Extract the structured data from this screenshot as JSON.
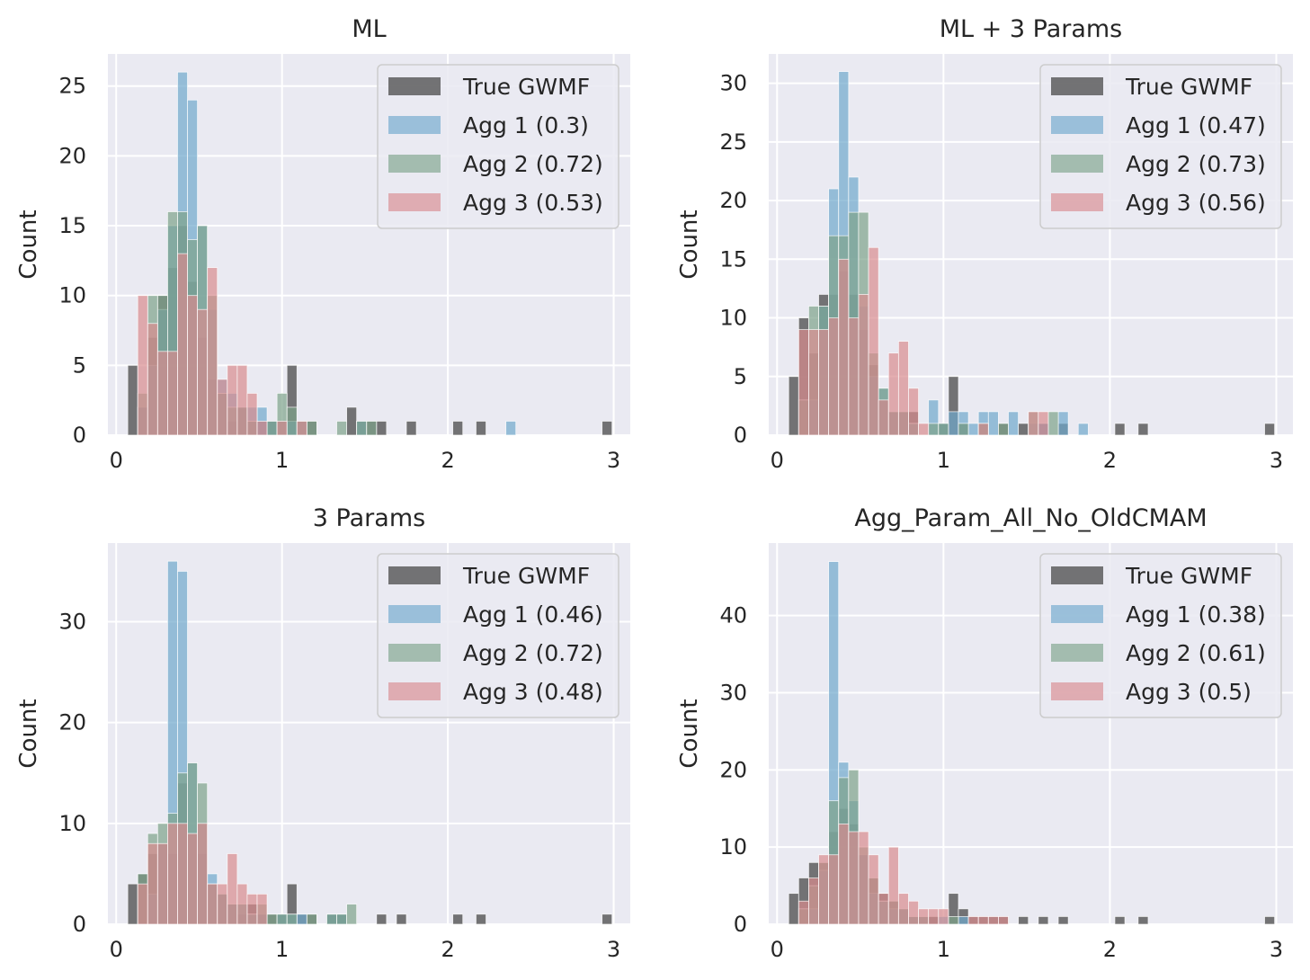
{
  "colors": {
    "axes_bg": "#EAEAF2",
    "grid": "#FFFFFF",
    "text": "#262626",
    "true_gwmf": "#4a4a4a",
    "agg1": "#6fa8cc",
    "agg2": "#7da38a",
    "agg3": "#d98b8f"
  },
  "chart_data": [
    {
      "type": "bar",
      "title": "ML",
      "xlabel": "",
      "ylabel": "Count",
      "xlim": [
        -0.05,
        3.1
      ],
      "ylim": [
        0,
        27.3
      ],
      "xticks": [
        0,
        1,
        2,
        3
      ],
      "yticks": [
        0,
        5,
        10,
        15,
        20,
        25
      ],
      "grid": true,
      "legend_position": "top-right",
      "bin_width": 0.06,
      "series": [
        {
          "name": "True GWMF",
          "x": [
            0.1,
            0.16,
            0.22,
            0.28,
            0.34,
            0.4,
            0.46,
            0.52,
            0.58,
            0.64,
            0.7,
            0.76,
            0.82,
            0.88,
            0.94,
            1.0,
            1.06,
            1.12,
            1.18,
            1.42,
            1.48,
            1.54,
            1.6,
            1.78,
            2.06,
            2.2,
            2.96
          ],
          "values": [
            5,
            2,
            7,
            10,
            12,
            15,
            11,
            7,
            4,
            3,
            1,
            2,
            1,
            1,
            1,
            1,
            5,
            1,
            1,
            2,
            1,
            1,
            1,
            1,
            1,
            1,
            1
          ]
        },
        {
          "name": "Agg 1 (0.3)",
          "x": [
            0.16,
            0.22,
            0.28,
            0.34,
            0.4,
            0.46,
            0.52,
            0.58,
            0.64,
            0.7,
            0.76,
            0.82,
            0.88,
            0.94,
            1.0,
            1.06,
            1.12,
            1.48,
            2.38
          ],
          "values": [
            2,
            5,
            9,
            15,
            26,
            24,
            15,
            9,
            4,
            3,
            2,
            2,
            2,
            1,
            1,
            1,
            1,
            1,
            1
          ]
        },
        {
          "name": "Agg 2 (0.72)",
          "x": [
            0.16,
            0.22,
            0.28,
            0.34,
            0.4,
            0.46,
            0.52,
            0.58,
            0.64,
            0.7,
            0.76,
            0.82,
            0.94,
            1.0,
            1.06,
            1.12,
            1.18,
            1.36,
            1.48,
            1.54
          ],
          "values": [
            3,
            10,
            10,
            16,
            16,
            14,
            15,
            10,
            3,
            2,
            2,
            1,
            1,
            3,
            2,
            1,
            1,
            1,
            1,
            1
          ]
        },
        {
          "name": "Agg 3 (0.53)",
          "x": [
            0.16,
            0.22,
            0.28,
            0.34,
            0.4,
            0.46,
            0.52,
            0.58,
            0.64,
            0.7,
            0.76,
            0.82,
            0.88,
            1.0,
            1.12
          ],
          "values": [
            10,
            8,
            6,
            6,
            13,
            10,
            9,
            12,
            4,
            5,
            5,
            3,
            1,
            1,
            1
          ]
        }
      ]
    },
    {
      "type": "bar",
      "title": "ML + 3 Params",
      "xlabel": "",
      "ylabel": "Count",
      "xlim": [
        -0.05,
        3.1
      ],
      "ylim": [
        0,
        32.5
      ],
      "xticks": [
        0,
        1,
        2,
        3
      ],
      "yticks": [
        0,
        5,
        10,
        15,
        20,
        25,
        30
      ],
      "grid": true,
      "legend_position": "top-right",
      "bin_width": 0.06,
      "series": [
        {
          "name": "True GWMF",
          "x": [
            0.1,
            0.16,
            0.22,
            0.28,
            0.34,
            0.4,
            0.46,
            0.52,
            0.58,
            0.64,
            0.7,
            0.76,
            0.82,
            1.0,
            1.06,
            1.12,
            1.24,
            1.36,
            1.48,
            1.6,
            1.72,
            2.06,
            2.2,
            2.96
          ],
          "values": [
            5,
            10,
            7,
            12,
            12,
            14,
            12,
            9,
            6,
            3,
            2,
            2,
            2,
            1,
            5,
            1,
            1,
            1,
            1,
            1,
            1,
            1,
            1,
            1
          ]
        },
        {
          "name": "Agg 1 (0.47)",
          "x": [
            0.22,
            0.28,
            0.34,
            0.4,
            0.46,
            0.52,
            0.58,
            0.64,
            0.7,
            0.76,
            0.82,
            0.94,
            1.0,
            1.06,
            1.12,
            1.18,
            1.24,
            1.3,
            1.42,
            1.54,
            1.6,
            1.72,
            1.84
          ],
          "values": [
            3,
            11,
            21,
            31,
            22,
            11,
            5,
            4,
            2,
            2,
            1,
            3,
            1,
            2,
            2,
            1,
            2,
            2,
            2,
            1,
            1,
            2,
            1
          ]
        },
        {
          "name": "Agg 2 (0.73)",
          "x": [
            0.16,
            0.22,
            0.28,
            0.34,
            0.4,
            0.46,
            0.52,
            0.58,
            0.64,
            0.7,
            0.76,
            0.82,
            0.94,
            1.0,
            1.12,
            1.24,
            1.36,
            1.54,
            1.66
          ],
          "values": [
            3,
            11,
            11,
            17,
            17,
            19,
            19,
            7,
            4,
            2,
            2,
            1,
            1,
            1,
            1,
            1,
            1,
            2,
            2
          ]
        },
        {
          "name": "Agg 3 (0.56)",
          "x": [
            0.16,
            0.22,
            0.28,
            0.34,
            0.4,
            0.46,
            0.52,
            0.58,
            0.64,
            0.7,
            0.76,
            0.82,
            0.88,
            1.24,
            1.54,
            1.6
          ],
          "values": [
            9,
            9,
            9,
            10,
            15,
            10,
            12,
            16,
            3,
            7,
            8,
            4,
            1,
            1,
            2,
            2
          ]
        }
      ]
    },
    {
      "type": "bar",
      "title": "3 Params",
      "xlabel": "",
      "ylabel": "Count",
      "xlim": [
        -0.05,
        3.1
      ],
      "ylim": [
        0,
        37.8
      ],
      "xticks": [
        0,
        1,
        2,
        3
      ],
      "yticks": [
        0,
        10,
        20,
        30
      ],
      "grid": true,
      "legend_position": "top-right",
      "bin_width": 0.06,
      "series": [
        {
          "name": "True GWMF",
          "x": [
            0.1,
            0.16,
            0.22,
            0.28,
            0.34,
            0.4,
            0.46,
            0.52,
            0.58,
            0.64,
            0.7,
            0.76,
            0.82,
            0.88,
            0.94,
            1.0,
            1.06,
            1.12,
            1.18,
            1.3,
            1.36,
            1.6,
            1.72,
            2.06,
            2.2,
            2.96
          ],
          "values": [
            4,
            5,
            7,
            8,
            7,
            14,
            9,
            7,
            4,
            3,
            2,
            1,
            2,
            1,
            1,
            1,
            4,
            1,
            1,
            1,
            1,
            1,
            1,
            1,
            1,
            1
          ]
        },
        {
          "name": "Agg 1 (0.46)",
          "x": [
            0.22,
            0.28,
            0.34,
            0.4,
            0.46,
            0.52,
            0.58,
            0.64,
            0.7,
            0.76,
            0.82,
            0.88,
            1.0,
            1.06,
            1.12,
            1.3,
            1.36
          ],
          "values": [
            3,
            8,
            36,
            35,
            16,
            10,
            5,
            3,
            2,
            2,
            1,
            1,
            1,
            1,
            1,
            1,
            1
          ]
        },
        {
          "name": "Agg 2 (0.72)",
          "x": [
            0.16,
            0.22,
            0.28,
            0.34,
            0.4,
            0.46,
            0.52,
            0.58,
            0.64,
            0.7,
            0.76,
            0.82,
            0.88,
            0.94,
            1.0,
            1.06,
            1.18,
            1.3,
            1.36,
            1.42
          ],
          "values": [
            5,
            9,
            10,
            11,
            15,
            16,
            14,
            4,
            3,
            2,
            2,
            1,
            2,
            1,
            1,
            1,
            1,
            1,
            1,
            2
          ]
        },
        {
          "name": "Agg 3 (0.48)",
          "x": [
            0.16,
            0.22,
            0.28,
            0.34,
            0.4,
            0.46,
            0.52,
            0.58,
            0.64,
            0.7,
            0.76,
            0.82,
            0.88
          ],
          "values": [
            4,
            8,
            8,
            10,
            10,
            9,
            10,
            4,
            4,
            7,
            4,
            3,
            3
          ]
        }
      ]
    },
    {
      "type": "bar",
      "title": "Agg_Param_All_No_OldCMAM",
      "xlabel": "",
      "ylabel": "Count",
      "xlim": [
        -0.05,
        3.1
      ],
      "ylim": [
        0,
        49.4
      ],
      "xticks": [
        0,
        1,
        2,
        3
      ],
      "yticks": [
        0,
        10,
        20,
        30,
        40
      ],
      "grid": true,
      "legend_position": "top-right",
      "bin_width": 0.06,
      "series": [
        {
          "name": "True GWMF",
          "x": [
            0.1,
            0.16,
            0.22,
            0.28,
            0.34,
            0.4,
            0.46,
            0.52,
            0.58,
            0.64,
            0.7,
            0.76,
            0.82,
            0.88,
            0.94,
            1.06,
            1.12,
            1.18,
            1.24,
            1.3,
            1.36,
            1.48,
            1.6,
            1.72,
            2.06,
            2.2,
            2.96
          ],
          "values": [
            4,
            6,
            8,
            8,
            12,
            15,
            13,
            9,
            6,
            4,
            3,
            2,
            1,
            1,
            1,
            4,
            2,
            1,
            1,
            1,
            1,
            1,
            1,
            1,
            1,
            1,
            1
          ]
        },
        {
          "name": "Agg 1 (0.38)",
          "x": [
            0.22,
            0.28,
            0.34,
            0.4,
            0.46,
            0.52,
            0.58,
            0.64,
            0.7,
            0.76,
            0.82,
            0.88,
            1.0,
            1.12
          ],
          "values": [
            2,
            7,
            47,
            21,
            16,
            9,
            4,
            3,
            2,
            2,
            1,
            1,
            1,
            1
          ]
        },
        {
          "name": "Agg 2 (0.61)",
          "x": [
            0.16,
            0.22,
            0.28,
            0.34,
            0.4,
            0.46,
            0.52,
            0.58,
            0.64,
            0.7,
            0.76,
            0.82,
            0.88,
            1.06
          ],
          "values": [
            2,
            5,
            8,
            16,
            19,
            20,
            10,
            6,
            3,
            3,
            2,
            1,
            1,
            1
          ]
        },
        {
          "name": "Agg 3 (0.5)",
          "x": [
            0.16,
            0.22,
            0.28,
            0.34,
            0.4,
            0.46,
            0.52,
            0.58,
            0.64,
            0.7,
            0.76,
            0.82,
            0.88,
            0.94,
            1.0,
            1.18,
            1.24,
            1.3,
            1.36
          ],
          "values": [
            3,
            6,
            9,
            9,
            13,
            12,
            12,
            9,
            4,
            10,
            4,
            3,
            2,
            2,
            2,
            1,
            1,
            1,
            1
          ]
        }
      ]
    }
  ]
}
